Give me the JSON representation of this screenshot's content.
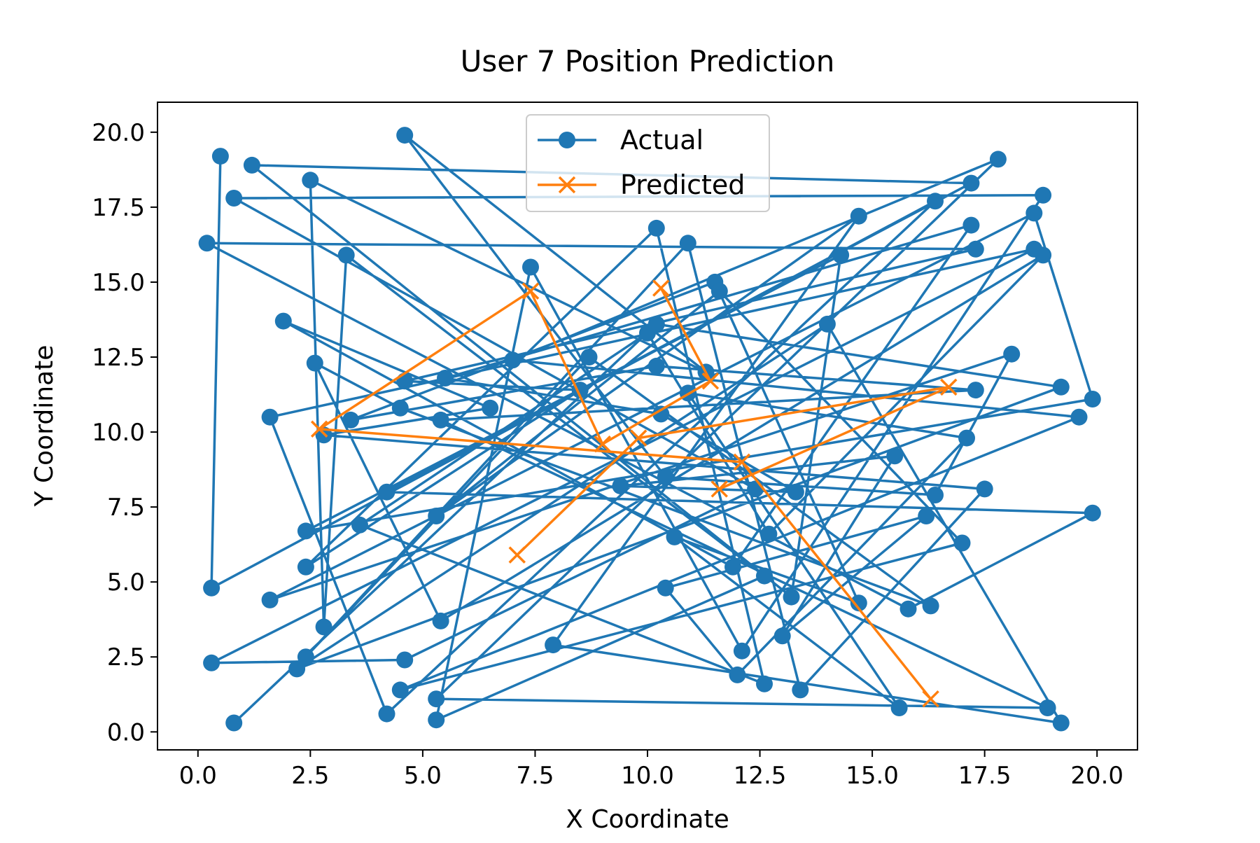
{
  "chart_data": {
    "type": "line",
    "title": "User 7 Position Prediction",
    "xlabel": "X Coordinate",
    "ylabel": "Y Coordinate",
    "xlim": [
      -0.9,
      20.9
    ],
    "ylim": [
      -0.6,
      21.0
    ],
    "xticks": [
      0.0,
      2.5,
      5.0,
      7.5,
      10.0,
      12.5,
      15.0,
      17.5,
      20.0
    ],
    "xtick_labels": [
      "0.0",
      "2.5",
      "5.0",
      "7.5",
      "10.0",
      "12.5",
      "15.0",
      "17.5",
      "20.0"
    ],
    "yticks": [
      0.0,
      2.5,
      5.0,
      7.5,
      10.0,
      12.5,
      15.0,
      17.5,
      20.0
    ],
    "ytick_labels": [
      "0.0",
      "2.5",
      "5.0",
      "7.5",
      "10.0",
      "12.5",
      "15.0",
      "17.5",
      "20.0"
    ],
    "grid": false,
    "legend_position": "top-center",
    "series": [
      {
        "name": "Actual",
        "color": "#1f77b4",
        "marker": "circle",
        "points": [
          [
            0.5,
            19.2
          ],
          [
            0.3,
            4.8
          ],
          [
            16.4,
            17.7
          ],
          [
            4.2,
            0.6
          ],
          [
            1.6,
            10.5
          ],
          [
            18.6,
            16.1
          ],
          [
            0.3,
            2.3
          ],
          [
            4.6,
            2.4
          ],
          [
            12.4,
            8.1
          ],
          [
            0.8,
            17.8
          ],
          [
            18.8,
            17.9
          ],
          [
            12.1,
            2.7
          ],
          [
            7.4,
            15.5
          ],
          [
            5.3,
            0.4
          ],
          [
            12.6,
            5.2
          ],
          [
            3.3,
            15.9
          ],
          [
            2.8,
            3.5
          ],
          [
            2.5,
            18.4
          ],
          [
            11.3,
            12.0
          ],
          [
            4.6,
            19.9
          ],
          [
            10.4,
            8.5
          ],
          [
            16.4,
            7.9
          ],
          [
            18.1,
            12.6
          ],
          [
            1.6,
            4.4
          ],
          [
            18.6,
            17.3
          ],
          [
            19.9,
            11.1
          ],
          [
            2.4,
            6.7
          ],
          [
            14.3,
            15.9
          ],
          [
            13.2,
            4.5
          ],
          [
            1.2,
            18.9
          ],
          [
            17.2,
            18.3
          ],
          [
            4.2,
            8.0
          ],
          [
            19.9,
            7.3
          ],
          [
            15.8,
            4.1
          ],
          [
            0.2,
            16.3
          ],
          [
            17.3,
            16.1
          ],
          [
            4.6,
            11.7
          ],
          [
            8.5,
            11.4
          ],
          [
            2.4,
            5.5
          ],
          [
            10.2,
            16.8
          ],
          [
            12.6,
            1.6
          ],
          [
            3.6,
            6.9
          ],
          [
            10.0,
            13.3
          ],
          [
            12.7,
            6.6
          ],
          [
            18.8,
            15.9
          ],
          [
            5.4,
            3.7
          ],
          [
            2.6,
            12.3
          ],
          [
            4.5,
            10.8
          ],
          [
            16.3,
            4.2
          ],
          [
            8.7,
            12.5
          ],
          [
            2.4,
            2.5
          ],
          [
            10.9,
            16.3
          ],
          [
            13.4,
            1.4
          ],
          [
            17.5,
            8.1
          ],
          [
            2.8,
            9.9
          ],
          [
            6.5,
            10.8
          ],
          [
            1.9,
            13.7
          ],
          [
            11.9,
            5.5
          ],
          [
            17.2,
            16.9
          ],
          [
            5.5,
            11.8
          ],
          [
            10.3,
            10.6
          ],
          [
            13.3,
            8.0
          ],
          [
            9.4,
            8.2
          ],
          [
            15.5,
            9.2
          ],
          [
            13.0,
            3.2
          ],
          [
            16.2,
            7.2
          ],
          [
            10.4,
            4.8
          ],
          [
            12.0,
            1.9
          ],
          [
            17.1,
            9.8
          ],
          [
            10.9,
            11.3
          ],
          [
            15.6,
            0.8
          ],
          [
            10.6,
            6.5
          ],
          [
            14.7,
            4.3
          ],
          [
            11.5,
            15.0
          ],
          [
            3.4,
            10.4
          ],
          [
            10.2,
            12.2
          ],
          [
            17.3,
            11.4
          ],
          [
            5.4,
            10.4
          ],
          [
            18.9,
            0.8
          ],
          [
            5.3,
            1.1
          ],
          [
            17.8,
            19.1
          ],
          [
            7.0,
            12.4
          ],
          [
            19.6,
            10.5
          ],
          [
            4.5,
            1.4
          ],
          [
            17.0,
            6.3
          ],
          [
            11.6,
            14.7
          ],
          [
            5.3,
            7.2
          ],
          [
            14.7,
            17.2
          ],
          [
            7.9,
            2.9
          ],
          [
            19.2,
            0.3
          ],
          [
            14.0,
            13.6
          ],
          [
            2.2,
            2.1
          ],
          [
            19.2,
            11.5
          ],
          [
            10.2,
            13.6
          ],
          [
            0.8,
            0.3
          ]
        ]
      },
      {
        "name": "Predicted",
        "color": "#ff7f0e",
        "marker": "x",
        "points": [
          [
            16.3,
            1.1
          ],
          [
            12.1,
            9.0
          ],
          [
            2.7,
            10.1
          ],
          [
            7.4,
            14.7
          ],
          [
            9.0,
            9.6
          ],
          [
            11.4,
            11.7
          ],
          [
            10.3,
            14.8
          ]
        ]
      },
      {
        "name": "",
        "color": "#ff7f0e",
        "marker": "x",
        "points": [
          [
            7.1,
            5.9
          ],
          [
            9.8,
            9.8
          ],
          [
            16.7,
            11.5
          ],
          [
            11.6,
            8.1
          ]
        ]
      }
    ]
  }
}
